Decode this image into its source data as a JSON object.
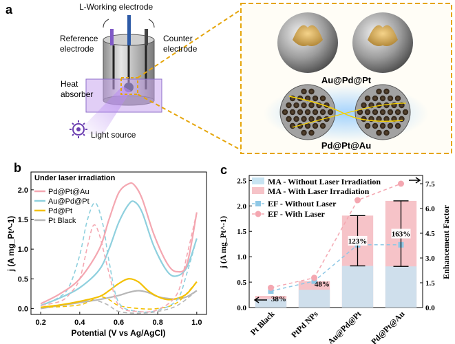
{
  "panel_a": {
    "label": "a",
    "labels": {
      "working": "L-Working electrode",
      "reference_1": "Reference",
      "reference_2": "electrode",
      "counter_1": "Counter",
      "counter_2": "electrode",
      "heat_1": "Heat",
      "heat_2": "absorber",
      "light": "Light source"
    },
    "particle_1_name": "Au@Pd@Pt",
    "particle_2_name": "Pd@Pt@Au"
  },
  "panel_b": {
    "label": "b",
    "note": "Under laser irradiation",
    "chart_data": {
      "type": "line",
      "xlabel": "Potential (V vs Ag/AgCl)",
      "ylabel": "j (A mg_Pt^-1)",
      "xlim": [
        0.15,
        1.05
      ],
      "ylim": [
        -0.1,
        2.3
      ],
      "xticks": [
        "0.2",
        "0.4",
        "0.6",
        "0.8",
        "1.0"
      ],
      "yticks": [
        "0.0",
        "0.5",
        "1.0",
        "1.5",
        "2.0"
      ],
      "series": [
        {
          "name": "Pd@Pt@Au",
          "color": "#f4a7b1",
          "forward": {
            "x": [
              0.2,
              0.3,
              0.4,
              0.5,
              0.55,
              0.6,
              0.65,
              0.68,
              0.72,
              0.78,
              0.85,
              0.9,
              0.95,
              1.0
            ],
            "y": [
              0.08,
              0.25,
              0.5,
              1.0,
              1.5,
              1.95,
              2.1,
              2.08,
              1.85,
              1.25,
              0.75,
              0.62,
              0.75,
              1.62
            ]
          },
          "reverse": {
            "x": [
              1.0,
              0.95,
              0.9,
              0.8,
              0.7,
              0.6,
              0.55,
              0.5,
              0.47,
              0.44,
              0.4,
              0.35,
              0.3,
              0.2
            ],
            "y": [
              1.62,
              0.9,
              0.25,
              -0.02,
              -0.05,
              0.05,
              0.6,
              1.25,
              1.4,
              1.05,
              0.5,
              0.25,
              0.12,
              0.05
            ]
          }
        },
        {
          "name": "Au@Pd@Pt",
          "color": "#8fd0de",
          "forward": {
            "x": [
              0.2,
              0.3,
              0.4,
              0.5,
              0.55,
              0.6,
              0.65,
              0.68,
              0.72,
              0.78,
              0.85,
              0.9,
              0.95,
              1.0
            ],
            "y": [
              0.05,
              0.18,
              0.35,
              0.65,
              1.0,
              1.45,
              1.75,
              1.8,
              1.62,
              1.05,
              0.62,
              0.55,
              0.7,
              1.18
            ]
          },
          "reverse": {
            "x": [
              1.0,
              0.95,
              0.9,
              0.8,
              0.7,
              0.6,
              0.55,
              0.52,
              0.48,
              0.44,
              0.4,
              0.35,
              0.3,
              0.2
            ],
            "y": [
              1.18,
              0.6,
              0.15,
              -0.03,
              -0.05,
              0.1,
              0.8,
              1.4,
              1.78,
              1.5,
              0.9,
              0.4,
              0.2,
              0.05
            ]
          }
        },
        {
          "name": "Pd@Pt",
          "color": "#f3c000",
          "forward": {
            "x": [
              0.2,
              0.3,
              0.4,
              0.5,
              0.55,
              0.6,
              0.65,
              0.7,
              0.75,
              0.8,
              0.85,
              0.9,
              0.95,
              1.0
            ],
            "y": [
              0.02,
              0.06,
              0.12,
              0.2,
              0.3,
              0.42,
              0.5,
              0.45,
              0.3,
              0.2,
              0.15,
              0.17,
              0.25,
              0.45
            ]
          },
          "reverse": {
            "x": [
              1.0,
              0.9,
              0.8,
              0.7,
              0.6,
              0.55,
              0.5,
              0.45,
              0.4,
              0.3,
              0.2
            ],
            "y": [
              0.45,
              0.1,
              0.0,
              0.0,
              0.05,
              0.15,
              0.2,
              0.12,
              0.06,
              0.03,
              0.02
            ]
          }
        },
        {
          "name": "Pt Black",
          "color": "#b7b7b7",
          "forward": {
            "x": [
              0.2,
              0.3,
              0.4,
              0.5,
              0.6,
              0.65,
              0.7,
              0.75,
              0.8,
              0.85,
              0.9,
              0.95,
              1.0
            ],
            "y": [
              0.0,
              0.05,
              0.1,
              0.15,
              0.22,
              0.27,
              0.3,
              0.27,
              0.2,
              0.17,
              0.16,
              0.2,
              0.3
            ]
          },
          "reverse": {
            "x": [
              1.0,
              0.9,
              0.8,
              0.7,
              0.6,
              0.55,
              0.5,
              0.45,
              0.4,
              0.3,
              0.2
            ],
            "y": [
              0.3,
              0.05,
              -0.05,
              -0.08,
              -0.05,
              0.05,
              0.12,
              0.15,
              0.1,
              0.05,
              0.02
            ]
          }
        }
      ]
    }
  },
  "panel_c": {
    "label": "c",
    "chart_data": {
      "type": "bar",
      "categories": [
        "Pt Black",
        "PtPd NPs",
        "Au@Pd@Pt",
        "Pd@Pt@Au"
      ],
      "ylabel_left": "j (A mg_Pt^-1)",
      "ylabel_right": "Enhancement Factor",
      "ylim_left": [
        0,
        2.6
      ],
      "ylim_right": [
        0,
        8.0
      ],
      "yticks_left": [
        "0.0",
        "0.5",
        "1.0",
        "1.5",
        "2.0",
        "2.5"
      ],
      "yticks_right": [
        "0.0",
        "1.5",
        "3.0",
        "4.5",
        "6.0",
        "7.5"
      ],
      "series": [
        {
          "name": "MA - Without Laser Irradiation",
          "kind": "bar",
          "color": "#c8e4f2",
          "values": [
            0.17,
            0.35,
            0.82,
            0.81
          ]
        },
        {
          "name": "MA - With Laser Irradiation",
          "kind": "bar",
          "color": "#f6c3c8",
          "values": [
            0.23,
            0.52,
            1.81,
            2.1
          ]
        },
        {
          "name": "EF - Without Laser",
          "kind": "line",
          "axis": "right",
          "color": "#8fc8e6",
          "values": [
            1.0,
            1.6,
            3.8,
            3.8
          ]
        },
        {
          "name": "EF - With Laser",
          "kind": "line",
          "axis": "right",
          "color": "#f4a7b1",
          "values": [
            1.2,
            1.8,
            6.5,
            7.5
          ]
        }
      ],
      "error_bars": [
        {
          "category": "Au@Pd@Pt",
          "low": 0.82,
          "high": 1.81
        },
        {
          "category": "Pd@Pt@Au",
          "low": 0.81,
          "high": 2.1
        }
      ],
      "annotations": [
        "38%",
        "48%",
        "123%",
        "163%"
      ]
    }
  }
}
